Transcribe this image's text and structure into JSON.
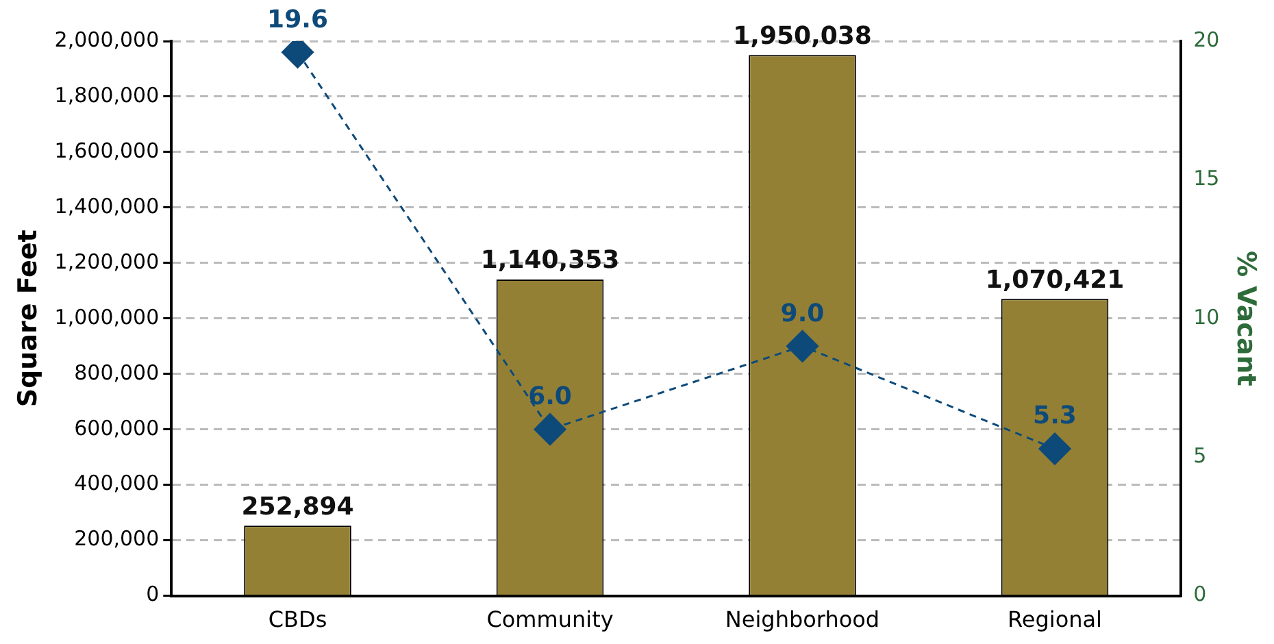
{
  "chart_data": {
    "type": "bar",
    "ylabel": "Square Feet",
    "y2label": "% Vacant",
    "categories": [
      "CBDs",
      "Community",
      "Neighborhood",
      "Regional"
    ],
    "series": [
      {
        "color": "#948035",
        "values": [
          252894,
          1140353,
          1950038,
          1070421
        ],
        "value_labels": [
          "252,894",
          "1,140,353",
          "1,950,038",
          "1,070,421"
        ]
      },
      {
        "type": "line",
        "axis": "y2",
        "color": "#0d4a7a",
        "values": [
          19.6,
          6.0,
          9.0,
          5.3
        ],
        "value_labels": [
          "19.6",
          "6.0",
          "9.0",
          "5.3"
        ],
        "marker": "diamond",
        "line_style": "dashed"
      }
    ],
    "ylim": [
      0,
      2000000
    ],
    "yticks": [
      {
        "value": 0,
        "label": "0"
      },
      {
        "value": 200000,
        "label": "200,000"
      },
      {
        "value": 400000,
        "label": "400,000"
      },
      {
        "value": 600000,
        "label": "600,000"
      },
      {
        "value": 800000,
        "label": "800,000"
      },
      {
        "value": 1000000,
        "label": "1,000,000"
      },
      {
        "value": 1200000,
        "label": "1,200,000"
      },
      {
        "value": 1400000,
        "label": "1,400,000"
      },
      {
        "value": 1600000,
        "label": "1,600,000"
      },
      {
        "value": 1800000,
        "label": "1,800,000"
      },
      {
        "value": 2000000,
        "label": "2,000,000"
      }
    ],
    "y2lim": [
      0,
      20
    ],
    "y2ticks": [
      0,
      5,
      10,
      15,
      20
    ],
    "grid": "y",
    "legend": false
  }
}
